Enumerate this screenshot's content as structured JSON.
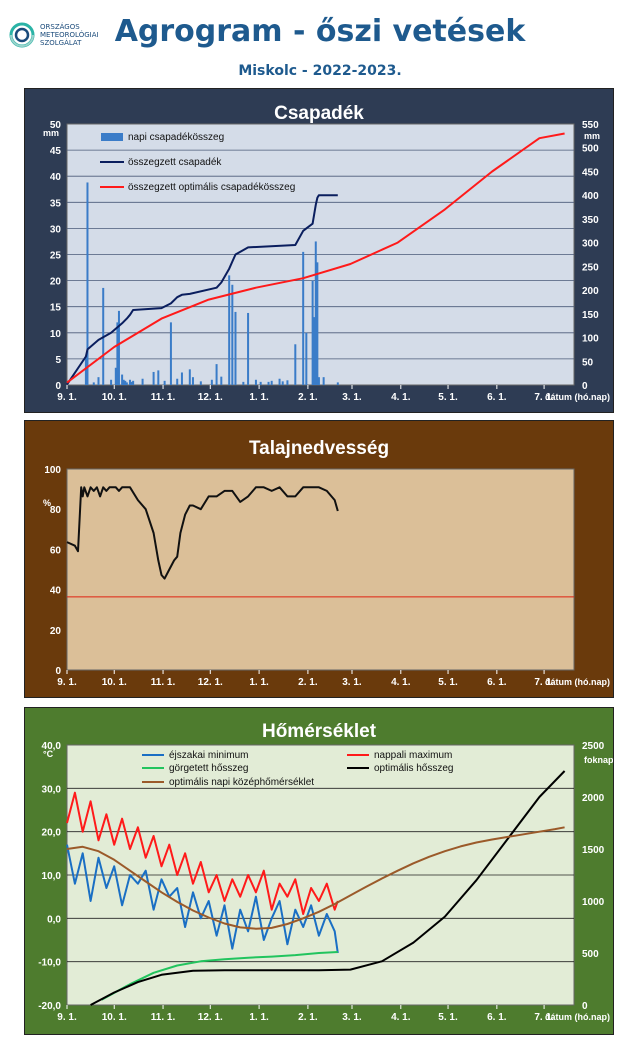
{
  "header": {
    "logo_lines": [
      "ORSZÁGOS",
      "METEOROLÓGIAI",
      "SZOLGÁLAT"
    ],
    "title": "Agrogram - őszi vetések",
    "subtitle": "Miskolc - 2022-2023."
  },
  "colors": {
    "precip_panel": "#2e3c54",
    "soil_panel": "#6a3a0c",
    "temp_panel": "#4e7c2e",
    "precip_plot": "#d4dce8",
    "soil_plot": "#dbbf98",
    "temp_plot": "#e2ecd6"
  },
  "chart_data": [
    {
      "type": "bar",
      "title": "Csapadék",
      "xlabel": "dátum (hó.nap)",
      "x_ticks": [
        "9. 1.",
        "10. 1.",
        "11. 1.",
        "12. 1.",
        "1. 1.",
        "2. 1.",
        "3. 1.",
        "4. 1.",
        "5. 1.",
        "6. 1.",
        "7. 1."
      ],
      "y_left": {
        "unit": "mm",
        "range": [
          0,
          50
        ],
        "ticks": [
          "0",
          "5",
          "10",
          "15",
          "20",
          "25",
          "30",
          "35",
          "40",
          "45",
          "50"
        ]
      },
      "y_right": {
        "unit": "mm",
        "range": [
          0,
          550
        ],
        "ticks": [
          "0",
          "50",
          "100",
          "150",
          "200",
          "250",
          "300",
          "350",
          "400",
          "450",
          "500",
          "550"
        ]
      },
      "grid": true,
      "legend": "top-left",
      "series": [
        {
          "name": "napi csapadékösszeg",
          "kind": "bar",
          "axis": "left",
          "color": "#3a7cc8",
          "days": [
            12,
            13,
            17,
            20,
            23,
            28,
            31,
            32,
            33,
            35,
            36,
            37,
            38,
            40,
            41,
            42,
            48,
            55,
            58,
            62,
            66,
            70,
            73,
            78,
            80,
            85,
            92,
            95,
            98,
            103,
            105,
            107,
            112,
            115,
            120,
            123,
            128,
            130,
            135,
            137,
            140,
            145,
            150,
            152,
            156,
            157,
            158,
            159,
            160,
            163,
            172
          ],
          "values": [
            5.5,
            38.8,
            0.5,
            1.5,
            18.6,
            1,
            3.3,
            12,
            14.2,
            2,
            1,
            0.8,
            0.5,
            1,
            0.6,
            0.8,
            1.2,
            2.5,
            2.8,
            0.8,
            12,
            1.2,
            2.4,
            3,
            1.5,
            0.7,
            1,
            4,
            1.6,
            21,
            19.2,
            14,
            0.6,
            13.8,
            1,
            0.6,
            0.6,
            0.8,
            1.2,
            0.7,
            0.9,
            7.8,
            25.5,
            10,
            20,
            13,
            27.5,
            23.5,
            1.5,
            1.5,
            0.5
          ]
        },
        {
          "name": "összegzett csapadék",
          "kind": "line",
          "axis": "right",
          "color": "#0a1e5e",
          "x": [
            0,
            12,
            13,
            20,
            28,
            35,
            38,
            40,
            42,
            60,
            66,
            70,
            73,
            78,
            95,
            98,
            103,
            105,
            107,
            115,
            145,
            150,
            152,
            156,
            158,
            159,
            160,
            172
          ],
          "y": [
            1,
            60,
            75,
            95,
            110,
            130,
            140,
            148,
            158,
            162,
            172,
            185,
            190,
            192,
            205,
            216,
            245,
            260,
            275,
            290,
            295,
            325,
            330,
            340,
            380,
            395,
            400,
            400
          ]
        },
        {
          "name": "összegzett optimális  csapadékösszeg",
          "kind": "line",
          "axis": "right",
          "color": "#ff1a1a",
          "x": [
            0,
            30,
            60,
            90,
            120,
            150,
            180,
            210,
            240,
            270,
            300,
            316
          ],
          "y": [
            5,
            80,
            140,
            180,
            205,
            225,
            255,
            300,
            370,
            450,
            520,
            530
          ]
        }
      ]
    },
    {
      "type": "line",
      "title": "Talajnedvesség",
      "xlabel": "dátum (hó.nap)",
      "x_ticks": [
        "9. 1.",
        "10. 1.",
        "11. 1.",
        "12. 1.",
        "1. 1.",
        "2. 1.",
        "3. 1.",
        "4. 1.",
        "5. 1.",
        "6. 1.",
        "7. 1."
      ],
      "y_left": {
        "unit": "%",
        "range": [
          0,
          110
        ],
        "ticks": [
          "0",
          "20",
          "40",
          "60",
          "80",
          "100"
        ]
      },
      "grid": false,
      "series": [
        {
          "name": "",
          "kind": "line",
          "color": "#111111",
          "x": [
            0,
            5,
            7,
            9,
            10,
            11,
            13,
            15,
            17,
            19,
            21,
            23,
            25,
            27,
            29,
            31,
            33,
            35,
            40,
            45,
            50,
            55,
            58,
            60,
            62,
            65,
            68,
            70,
            72,
            75,
            78,
            80,
            85,
            90,
            95,
            100,
            105,
            110,
            115,
            120,
            125,
            130,
            135,
            140,
            145,
            150,
            155,
            160,
            165,
            170,
            172
          ],
          "y": [
            70,
            68,
            65,
            100,
            95,
            100,
            95,
            100,
            98,
            100,
            95,
            100,
            98,
            100,
            100,
            100,
            98,
            100,
            100,
            93,
            88,
            75,
            60,
            52,
            50,
            55,
            60,
            62,
            75,
            85,
            90,
            90,
            88,
            95,
            95,
            98,
            98,
            92,
            95,
            100,
            100,
            98,
            100,
            95,
            95,
            100,
            100,
            100,
            98,
            93,
            87
          ]
        },
        {
          "name": "",
          "kind": "hline",
          "color": "#e02010",
          "y": 40
        }
      ]
    },
    {
      "type": "line",
      "title": "Hőmérséklet",
      "xlabel": "dátum (hó.nap)",
      "x_ticks": [
        "9. 1.",
        "10. 1.",
        "11. 1.",
        "12. 1.",
        "1. 1.",
        "2. 1.",
        "3. 1.",
        "4. 1.",
        "5. 1.",
        "6. 1.",
        "7. 1."
      ],
      "y_left": {
        "unit": "°C",
        "range": [
          -20,
          40
        ],
        "ticks": [
          "-20,0",
          "-10,0",
          "0,0",
          "10,0",
          "20,0",
          "30,0",
          "40,0"
        ]
      },
      "y_right": {
        "unit": "foknap",
        "range": [
          0,
          2500
        ],
        "ticks": [
          "0",
          "500",
          "1000",
          "1500",
          "2000",
          "2500"
        ]
      },
      "grid": true,
      "legend": "top",
      "series": [
        {
          "name": "éjszakai minimum",
          "kind": "line",
          "axis": "left",
          "color": "#1a6fc4",
          "x": [
            0,
            5,
            10,
            15,
            20,
            25,
            30,
            35,
            40,
            45,
            50,
            55,
            60,
            65,
            70,
            75,
            80,
            85,
            90,
            95,
            100,
            105,
            110,
            115,
            120,
            125,
            130,
            135,
            140,
            145,
            150,
            155,
            160,
            165,
            170,
            172
          ],
          "y": [
            17,
            8,
            15,
            4,
            14,
            7,
            12,
            3,
            10,
            8,
            11,
            2,
            9,
            5,
            7,
            -2,
            6,
            0,
            4,
            -4,
            3,
            -7,
            2,
            -3,
            5,
            -5,
            0,
            4,
            -6,
            2,
            -2,
            3,
            -4,
            1,
            -3,
            -8
          ]
        },
        {
          "name": "nappali maximum",
          "kind": "line",
          "axis": "left",
          "color": "#ff1a1a",
          "x": [
            0,
            5,
            10,
            15,
            20,
            25,
            30,
            35,
            40,
            45,
            50,
            55,
            60,
            65,
            70,
            75,
            80,
            85,
            90,
            95,
            100,
            105,
            110,
            115,
            120,
            125,
            130,
            135,
            140,
            145,
            150,
            155,
            160,
            165,
            170,
            172
          ],
          "y": [
            22,
            29,
            20,
            27,
            18,
            24,
            17,
            23,
            16,
            21,
            14,
            19,
            12,
            17,
            10,
            15,
            8,
            13,
            6,
            10,
            4,
            9,
            5,
            10,
            6,
            11,
            2,
            8,
            5,
            9,
            1,
            7,
            4,
            8,
            2,
            4
          ]
        },
        {
          "name": "görgetett hősszeg",
          "kind": "line",
          "axis": "right",
          "color": "#22c45e",
          "x": [
            22,
            40,
            55,
            70,
            85,
            100,
            115,
            130,
            145,
            160,
            172
          ],
          "y": [
            50,
            200,
            310,
            380,
            420,
            440,
            455,
            465,
            480,
            500,
            510
          ]
        },
        {
          "name": "optimális hősszeg",
          "kind": "line",
          "axis": "right",
          "color": "#000000",
          "x": [
            15,
            30,
            45,
            60,
            80,
            100,
            120,
            140,
            160,
            180,
            200,
            220,
            240,
            260,
            280,
            300,
            316
          ],
          "y": [
            0,
            120,
            220,
            290,
            330,
            335,
            335,
            335,
            335,
            340,
            420,
            600,
            850,
            1200,
            1600,
            2000,
            2250
          ]
        },
        {
          "name": "optimális napi középhőmérséklet",
          "kind": "line",
          "axis": "left",
          "color": "#9b5a2a",
          "x": [
            0,
            10,
            20,
            30,
            40,
            50,
            60,
            70,
            80,
            90,
            100,
            110,
            120,
            130,
            140,
            150,
            160,
            170,
            180,
            190,
            200,
            210,
            220,
            230,
            240,
            250,
            260,
            270,
            280,
            290,
            300,
            310,
            316
          ],
          "y": [
            16,
            16.5,
            15.5,
            13.5,
            11,
            8.5,
            6,
            3.8,
            1.8,
            0.2,
            -1.2,
            -2.1,
            -2.4,
            -2.2,
            -1.3,
            0,
            1.5,
            3.3,
            5.3,
            7.3,
            9.2,
            11,
            12.7,
            14.2,
            15.5,
            16.6,
            17.5,
            18.2,
            18.8,
            19.4,
            20,
            20.6,
            21
          ]
        }
      ]
    }
  ]
}
